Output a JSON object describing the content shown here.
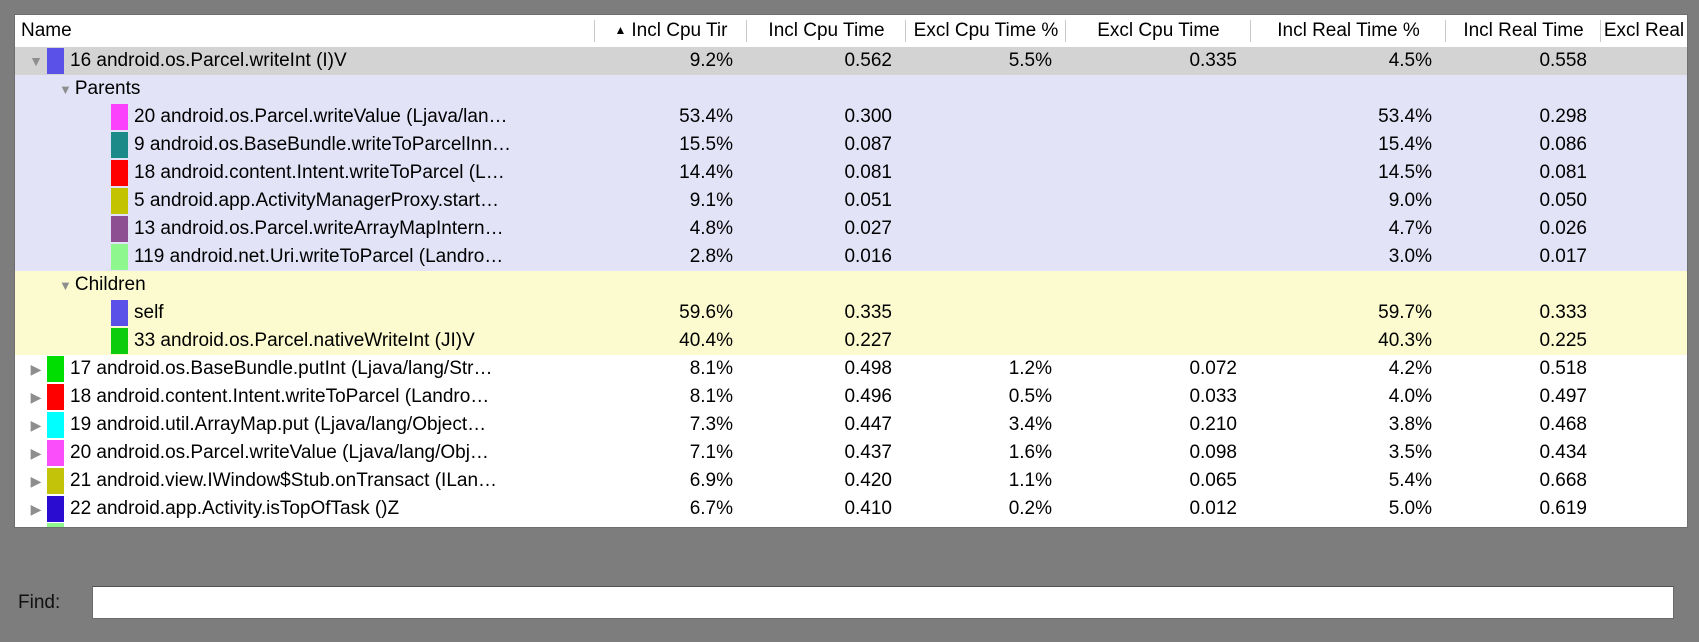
{
  "window": {
    "frame_color": "#7d7d7d"
  },
  "table": {
    "sort_icon": "▲",
    "expanded_icon": "▼",
    "collapsed_icon": "▶",
    "columns": [
      {
        "label": "Name",
        "sorted": false
      },
      {
        "label": "Incl Cpu Tir",
        "sorted": true
      },
      {
        "label": "Incl Cpu Time",
        "sorted": false
      },
      {
        "label": "Excl Cpu Time %",
        "sorted": false
      },
      {
        "label": "Excl Cpu Time",
        "sorted": false
      },
      {
        "label": "Incl Real Time %",
        "sorted": false
      },
      {
        "label": "Incl Real Time",
        "sorted": false
      },
      {
        "label": "Excl Real",
        "sorted": false
      }
    ],
    "rows": [
      {
        "kind": "toplevel",
        "expand": "expanded",
        "swatch": "#5a52e8",
        "bg": "#d3d3d3",
        "name": "16 android.os.Parcel.writeInt (I)V",
        "values": [
          "9.2%",
          "0.562",
          "5.5%",
          "0.335",
          "4.5%",
          "0.558"
        ]
      },
      {
        "kind": "section",
        "expand": "expanded",
        "swatch": null,
        "bg": "#e3e3f8",
        "name": "Parents",
        "values": [
          "",
          "",
          "",
          "",
          "",
          ""
        ]
      },
      {
        "kind": "sub",
        "expand": null,
        "swatch": "#fb41fb",
        "bg": "#e3e3f8",
        "name": "20 android.os.Parcel.writeValue (Ljava/lan…",
        "values": [
          "53.4%",
          "0.300",
          "",
          "",
          "53.4%",
          "0.298"
        ]
      },
      {
        "kind": "sub",
        "expand": null,
        "swatch": "#1d8a8a",
        "bg": "#e3e3f8",
        "name": "9 android.os.BaseBundle.writeToParcelInn…",
        "values": [
          "15.5%",
          "0.087",
          "",
          "",
          "15.4%",
          "0.086"
        ]
      },
      {
        "kind": "sub",
        "expand": null,
        "swatch": "#fe0000",
        "bg": "#e3e3f8",
        "name": "18 android.content.Intent.writeToParcel (L…",
        "values": [
          "14.4%",
          "0.081",
          "",
          "",
          "14.5%",
          "0.081"
        ]
      },
      {
        "kind": "sub",
        "expand": null,
        "swatch": "#c3c300",
        "bg": "#e3e3f8",
        "name": "5 android.app.ActivityManagerProxy.start…",
        "values": [
          "9.1%",
          "0.051",
          "",
          "",
          "9.0%",
          "0.050"
        ]
      },
      {
        "kind": "sub",
        "expand": null,
        "swatch": "#8d4f92",
        "bg": "#e3e3f8",
        "name": "13 android.os.Parcel.writeArrayMapIntern…",
        "values": [
          "4.8%",
          "0.027",
          "",
          "",
          "4.7%",
          "0.026"
        ]
      },
      {
        "kind": "sub",
        "expand": null,
        "swatch": "#8ef78e",
        "bg": "#e3e3f8",
        "name": "119 android.net.Uri.writeToParcel (Landro…",
        "values": [
          "2.8%",
          "0.016",
          "",
          "",
          "3.0%",
          "0.017"
        ]
      },
      {
        "kind": "section",
        "expand": "expanded",
        "swatch": null,
        "bg": "#fbfbcf",
        "name": "Children",
        "values": [
          "",
          "",
          "",
          "",
          "",
          ""
        ]
      },
      {
        "kind": "sub",
        "expand": null,
        "swatch": "#5a52e8",
        "bg": "#fbfbcf",
        "name": "self",
        "values": [
          "59.6%",
          "0.335",
          "",
          "",
          "59.7%",
          "0.333"
        ]
      },
      {
        "kind": "sub",
        "expand": null,
        "swatch": "#0dcc0d",
        "bg": "#fbfbcf",
        "name": "33 android.os.Parcel.nativeWriteInt (JI)V",
        "values": [
          "40.4%",
          "0.227",
          "",
          "",
          "40.3%",
          "0.225"
        ]
      },
      {
        "kind": "toplevel",
        "expand": "collapsed",
        "swatch": "#00dd00",
        "bg": "#ffffff",
        "name": "17 android.os.BaseBundle.putInt (Ljava/lang/Str…",
        "values": [
          "8.1%",
          "0.498",
          "1.2%",
          "0.072",
          "4.2%",
          "0.518"
        ]
      },
      {
        "kind": "toplevel",
        "expand": "collapsed",
        "swatch": "#fe0000",
        "bg": "#ffffff",
        "name": "18 android.content.Intent.writeToParcel (Landro…",
        "values": [
          "8.1%",
          "0.496",
          "0.5%",
          "0.033",
          "4.0%",
          "0.497"
        ]
      },
      {
        "kind": "toplevel",
        "expand": "collapsed",
        "swatch": "#00ffff",
        "bg": "#ffffff",
        "name": "19 android.util.ArrayMap.put (Ljava/lang/Object…",
        "values": [
          "7.3%",
          "0.447",
          "3.4%",
          "0.210",
          "3.8%",
          "0.468"
        ]
      },
      {
        "kind": "toplevel",
        "expand": "collapsed",
        "swatch": "#fb4efb",
        "bg": "#ffffff",
        "name": "20 android.os.Parcel.writeValue (Ljava/lang/Obj…",
        "values": [
          "7.1%",
          "0.437",
          "1.6%",
          "0.098",
          "3.5%",
          "0.434"
        ]
      },
      {
        "kind": "toplevel",
        "expand": "collapsed",
        "swatch": "#c3c30a",
        "bg": "#ffffff",
        "name": "21 android.view.IWindow$Stub.onTransact (ILan…",
        "values": [
          "6.9%",
          "0.420",
          "1.1%",
          "0.065",
          "5.4%",
          "0.668"
        ]
      },
      {
        "kind": "toplevel",
        "expand": "collapsed",
        "swatch": "#2a0bd0",
        "bg": "#ffffff",
        "name": "22 android.app.Activity.isTopOfTask ()Z",
        "values": [
          "6.7%",
          "0.410",
          "0.2%",
          "0.012",
          "5.0%",
          "0.619"
        ]
      },
      {
        "kind": "partial",
        "expand": null,
        "swatch": "#8ef78e",
        "bg": "#ffffff",
        "name": "",
        "values": [
          "",
          "",
          "",
          "",
          "",
          ""
        ]
      }
    ]
  },
  "find": {
    "label": "Find:",
    "value": ""
  }
}
